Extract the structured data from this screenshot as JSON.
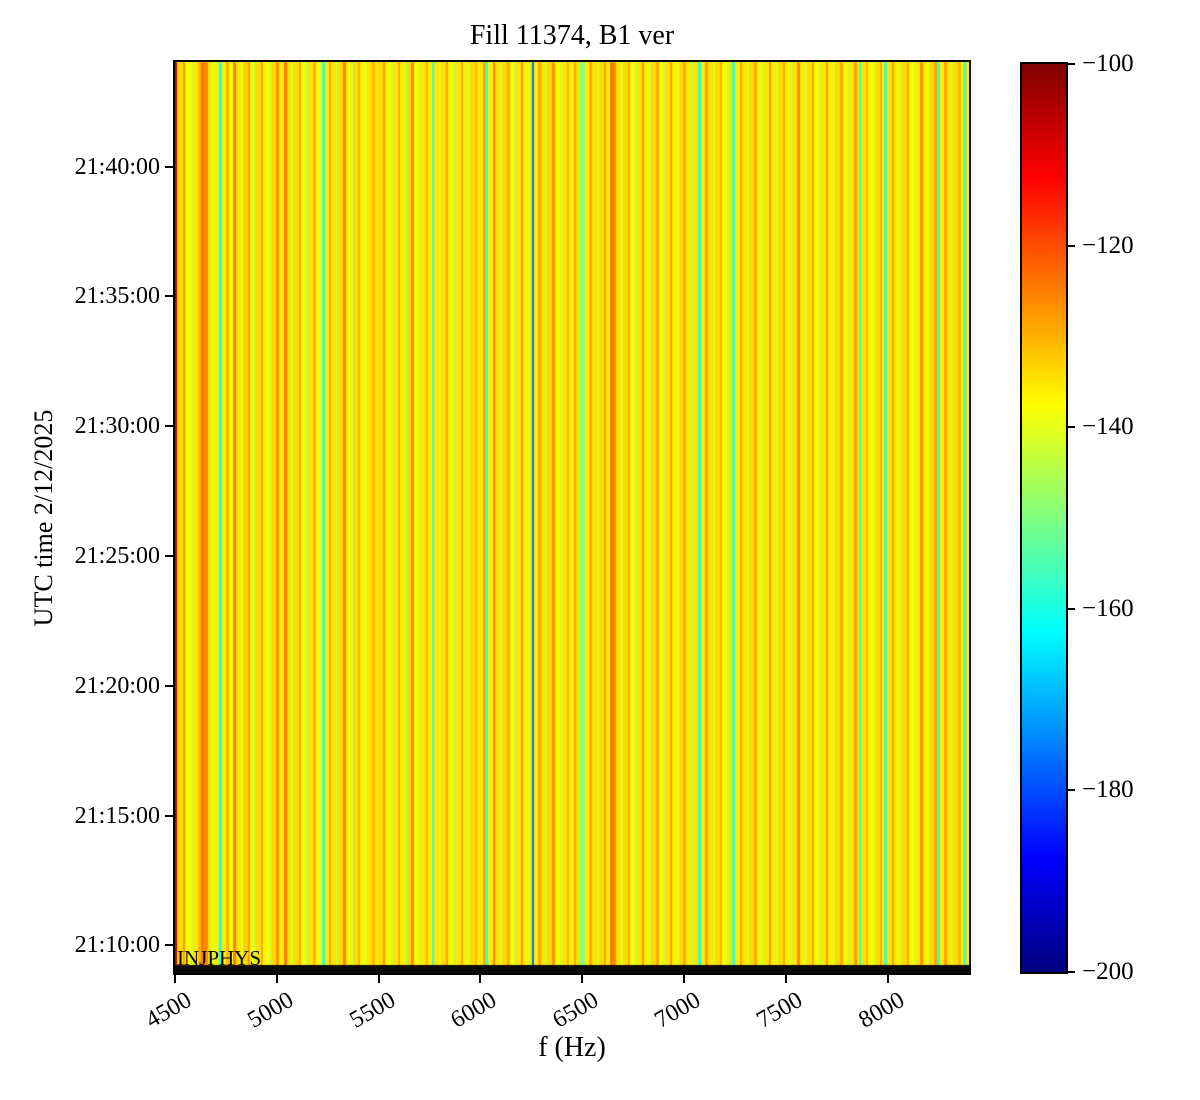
{
  "chart_data": {
    "type": "heatmap",
    "title": "Fill 11374, B1 ver",
    "xlabel": "f (Hz)",
    "ylabel": "UTC time 2/12/2025",
    "annotation": "INJPHYS",
    "x_range_hz": [
      4500,
      8400
    ],
    "x_tick_values": [
      4500,
      5000,
      5500,
      6000,
      6500,
      7000,
      7500,
      8000
    ],
    "y_tick_labels": [
      "21:40:00",
      "21:35:00",
      "21:30:00",
      "21:25:00",
      "21:20:00",
      "21:15:00",
      "21:10:00"
    ],
    "y_time_top": "21:44:02",
    "y_time_bottom": "21:08:56",
    "grid": false,
    "colormap": "jet",
    "colorbar": {
      "vmin": -200,
      "vmax": -100,
      "tick_values": [
        -100,
        -120,
        -140,
        -160,
        -180,
        -200
      ],
      "tick_labels": [
        "−100",
        "−120",
        "−140",
        "−160",
        "−180",
        "−200"
      ]
    },
    "bottom_band_db": -200,
    "stripes_unit": "consecutive vertical stripes from 4500 Hz: [width_hz, power_db]; pattern constant over time",
    "stripes": [
      [
        12,
        -106
      ],
      [
        28,
        -134
      ],
      [
        12,
        -127
      ],
      [
        30,
        -138
      ],
      [
        10,
        -142
      ],
      [
        25,
        -135
      ],
      [
        12,
        -130
      ],
      [
        14,
        -124
      ],
      [
        20,
        -126
      ],
      [
        18,
        -135
      ],
      [
        10,
        -142
      ],
      [
        22,
        -136
      ],
      [
        8,
        -146
      ],
      [
        14,
        -157
      ],
      [
        20,
        -136
      ],
      [
        12,
        -130
      ],
      [
        22,
        -138
      ],
      [
        12,
        -125
      ],
      [
        24,
        -135
      ],
      [
        10,
        -141
      ],
      [
        25,
        -133
      ],
      [
        12,
        -128
      ],
      [
        20,
        -137
      ],
      [
        10,
        -144
      ],
      [
        22,
        -134
      ],
      [
        12,
        -129
      ],
      [
        26,
        -137
      ],
      [
        10,
        -142
      ],
      [
        28,
        -134
      ],
      [
        14,
        -127
      ],
      [
        26,
        -136
      ],
      [
        12,
        -124
      ],
      [
        22,
        -135
      ],
      [
        10,
        -143
      ],
      [
        26,
        -134
      ],
      [
        12,
        -129
      ],
      [
        24,
        -138
      ],
      [
        10,
        -145
      ],
      [
        25,
        -135
      ],
      [
        12,
        -130
      ],
      [
        20,
        -137
      ],
      [
        10,
        -141
      ],
      [
        14,
        -156
      ],
      [
        22,
        -136
      ],
      [
        12,
        -128
      ],
      [
        24,
        -135
      ],
      [
        10,
        -142
      ],
      [
        25,
        -134
      ],
      [
        14,
        -125
      ],
      [
        22,
        -136
      ],
      [
        10,
        -144
      ],
      [
        24,
        -134
      ],
      [
        12,
        -129
      ],
      [
        24,
        -137
      ],
      [
        10,
        -141
      ],
      [
        26,
        -135
      ],
      [
        12,
        -130
      ],
      [
        16,
        -136
      ],
      [
        24,
        -134
      ],
      [
        12,
        -127
      ],
      [
        26,
        -137
      ],
      [
        10,
        -143
      ],
      [
        24,
        -135
      ],
      [
        12,
        -129
      ],
      [
        22,
        -136
      ],
      [
        10,
        -146
      ],
      [
        24,
        -134
      ],
      [
        12,
        -126
      ],
      [
        22,
        -137
      ],
      [
        10,
        -142
      ],
      [
        25,
        -135
      ],
      [
        12,
        -130
      ],
      [
        18,
        -136
      ],
      [
        14,
        -158
      ],
      [
        22,
        -135
      ],
      [
        10,
        -141
      ],
      [
        24,
        -134
      ],
      [
        12,
        -128
      ],
      [
        24,
        -137
      ],
      [
        10,
        -144
      ],
      [
        26,
        -135
      ],
      [
        12,
        -129
      ],
      [
        22,
        -136
      ],
      [
        10,
        -142
      ],
      [
        26,
        -134
      ],
      [
        12,
        -130
      ],
      [
        13,
        -136
      ],
      [
        14,
        -135
      ],
      [
        12,
        -128
      ],
      [
        14,
        -157
      ],
      [
        22,
        -136
      ],
      [
        12,
        -125
      ],
      [
        24,
        -135
      ],
      [
        10,
        -142
      ],
      [
        26,
        -134
      ],
      [
        12,
        -129
      ],
      [
        22,
        -137
      ],
      [
        10,
        -144
      ],
      [
        24,
        -135
      ],
      [
        12,
        -127
      ],
      [
        22,
        -136
      ],
      [
        10,
        -141
      ],
      [
        10,
        -135
      ],
      [
        8,
        -176
      ],
      [
        22,
        -136
      ],
      [
        12,
        -129
      ],
      [
        24,
        -135
      ],
      [
        10,
        -143
      ],
      [
        24,
        -134
      ],
      [
        12,
        -127
      ],
      [
        24,
        -137
      ],
      [
        10,
        -142
      ],
      [
        24,
        -135
      ],
      [
        12,
        -130
      ],
      [
        22,
        -136
      ],
      [
        12,
        -128
      ],
      [
        16,
        -135
      ],
      [
        28,
        -149
      ],
      [
        22,
        -136
      ],
      [
        12,
        -129
      ],
      [
        24,
        -135
      ],
      [
        10,
        -142
      ],
      [
        24,
        -134
      ],
      [
        12,
        -128
      ],
      [
        20,
        -136
      ],
      [
        16,
        -124
      ],
      [
        14,
        -126
      ],
      [
        22,
        -135
      ],
      [
        10,
        -141
      ],
      [
        24,
        -134
      ],
      [
        12,
        -129
      ],
      [
        24,
        -137
      ],
      [
        10,
        -144
      ],
      [
        24,
        -135
      ],
      [
        12,
        -127
      ],
      [
        22,
        -136
      ],
      [
        10,
        -142
      ],
      [
        26,
        -134
      ],
      [
        12,
        -129
      ],
      [
        22,
        -137
      ],
      [
        10,
        -143
      ],
      [
        24,
        -135
      ],
      [
        12,
        -128
      ],
      [
        24,
        -136
      ],
      [
        10,
        -141
      ],
      [
        20,
        -134
      ],
      [
        12,
        -129
      ],
      [
        24,
        -136
      ],
      [
        10,
        -143
      ],
      [
        26,
        -135
      ],
      [
        14,
        -158
      ],
      [
        22,
        -136
      ],
      [
        12,
        -128
      ],
      [
        24,
        -135
      ],
      [
        10,
        -142
      ],
      [
        24,
        -134
      ],
      [
        12,
        -130
      ],
      [
        22,
        -137
      ],
      [
        10,
        -144
      ],
      [
        16,
        -135
      ],
      [
        14,
        -157
      ],
      [
        24,
        -136
      ],
      [
        12,
        -128
      ],
      [
        24,
        -135
      ],
      [
        10,
        -142
      ],
      [
        26,
        -134
      ],
      [
        12,
        -129
      ],
      [
        22,
        -137
      ],
      [
        10,
        -143
      ],
      [
        26,
        -135
      ],
      [
        12,
        -127
      ],
      [
        24,
        -136
      ],
      [
        10,
        -141
      ],
      [
        24,
        -134
      ],
      [
        12,
        -129
      ],
      [
        24,
        -136
      ],
      [
        10,
        -143
      ],
      [
        26,
        -135
      ],
      [
        12,
        -126
      ],
      [
        24,
        -136
      ],
      [
        10,
        -142
      ],
      [
        24,
        -134
      ],
      [
        12,
        -129
      ],
      [
        24,
        -137
      ],
      [
        10,
        -144
      ],
      [
        24,
        -135
      ],
      [
        12,
        -128
      ],
      [
        22,
        -136
      ],
      [
        10,
        -142
      ],
      [
        26,
        -134
      ],
      [
        12,
        -129
      ],
      [
        22,
        -137
      ],
      [
        10,
        -143
      ],
      [
        26,
        -135
      ],
      [
        12,
        -128
      ],
      [
        8,
        -136
      ],
      [
        14,
        -157
      ],
      [
        22,
        -135
      ],
      [
        12,
        -130
      ],
      [
        22,
        -137
      ],
      [
        10,
        -142
      ],
      [
        24,
        -134
      ],
      [
        12,
        -129
      ],
      [
        8,
        -136
      ],
      [
        14,
        -156
      ],
      [
        2,
        -136
      ],
      [
        24,
        -135
      ],
      [
        12,
        -128
      ],
      [
        24,
        -136
      ],
      [
        10,
        -142
      ],
      [
        26,
        -134
      ],
      [
        12,
        -129
      ],
      [
        22,
        -137
      ],
      [
        10,
        -143
      ],
      [
        24,
        -135
      ],
      [
        12,
        -127
      ],
      [
        22,
        -136
      ],
      [
        10,
        -141
      ],
      [
        24,
        -134
      ],
      [
        12,
        -129
      ],
      [
        14,
        -156
      ],
      [
        22,
        -136
      ],
      [
        12,
        -128
      ],
      [
        24,
        -135
      ],
      [
        10,
        -142
      ],
      [
        24,
        -134
      ],
      [
        12,
        -130
      ],
      [
        10,
        -137
      ],
      [
        14,
        -157
      ],
      [
        14,
        -135
      ]
    ]
  }
}
